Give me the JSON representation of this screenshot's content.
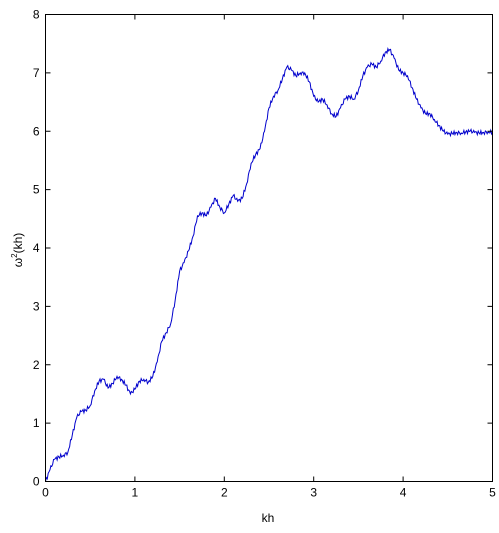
{
  "chart_data": {
    "type": "line",
    "title": "",
    "xlabel": "kh",
    "ylabel_base": "ω",
    "ylabel_sup": "2",
    "ylabel_tail": "(kh)",
    "xlim": [
      0,
      5
    ],
    "ylim": [
      0,
      8
    ],
    "xticks": [
      0,
      1,
      2,
      3,
      4,
      5
    ],
    "yticks": [
      0,
      1,
      2,
      3,
      4,
      5,
      6,
      7,
      8
    ],
    "grid": false,
    "line_color": "#0000cc",
    "series": [
      {
        "x": [
          0,
          0.05,
          0.1,
          0.15,
          0.2,
          0.25,
          0.3,
          0.35,
          0.4,
          0.45,
          0.5,
          0.55,
          0.6,
          0.65,
          0.7,
          0.75,
          0.8,
          0.85,
          0.9,
          0.95,
          1.0,
          1.05,
          1.1,
          1.15,
          1.2,
          1.25,
          1.3,
          1.35,
          1.4,
          1.45,
          1.5,
          1.55,
          1.6,
          1.65,
          1.7,
          1.75,
          1.8,
          1.85,
          1.9,
          1.95,
          2.0,
          2.05,
          2.1,
          2.15,
          2.2,
          2.25,
          2.3,
          2.35,
          2.4,
          2.45,
          2.5,
          2.55,
          2.6,
          2.65,
          2.7,
          2.75,
          2.8,
          2.85,
          2.9,
          2.95,
          3.0,
          3.05,
          3.1,
          3.15,
          3.2,
          3.25,
          3.3,
          3.35,
          3.4,
          3.45,
          3.5,
          3.55,
          3.6,
          3.65,
          3.7,
          3.75,
          3.8,
          3.85,
          3.9,
          3.95,
          4.0,
          4.05,
          4.1,
          4.15,
          4.2,
          4.25,
          4.3,
          4.35,
          4.4,
          4.45,
          4.5,
          4.55,
          4.6,
          4.65,
          4.7,
          4.75,
          4.8,
          4.85,
          4.9,
          4.95,
          5.0
        ],
        "values": [
          0.0,
          0.2,
          0.38,
          0.42,
          0.45,
          0.5,
          0.8,
          1.1,
          1.2,
          1.22,
          1.3,
          1.55,
          1.72,
          1.75,
          1.6,
          1.68,
          1.8,
          1.75,
          1.65,
          1.5,
          1.58,
          1.72,
          1.75,
          1.7,
          1.8,
          2.05,
          2.4,
          2.55,
          2.7,
          3.1,
          3.6,
          3.75,
          3.95,
          4.2,
          4.55,
          4.6,
          4.55,
          4.7,
          4.85,
          4.7,
          4.6,
          4.75,
          4.9,
          4.8,
          4.85,
          5.1,
          5.45,
          5.6,
          5.7,
          6.0,
          6.4,
          6.6,
          6.7,
          6.9,
          7.1,
          7.05,
          6.95,
          7.0,
          7.0,
          6.85,
          6.6,
          6.5,
          6.55,
          6.45,
          6.3,
          6.25,
          6.4,
          6.55,
          6.6,
          6.55,
          6.7,
          6.95,
          7.1,
          7.15,
          7.1,
          7.2,
          7.35,
          7.4,
          7.25,
          7.05,
          7.0,
          6.95,
          6.75,
          6.55,
          6.4,
          6.3,
          6.3,
          6.2,
          6.1,
          6.0,
          5.95,
          5.96,
          5.98,
          5.97,
          5.99,
          6.0,
          5.98,
          5.97,
          5.98,
          5.99,
          5.98
        ]
      }
    ]
  }
}
